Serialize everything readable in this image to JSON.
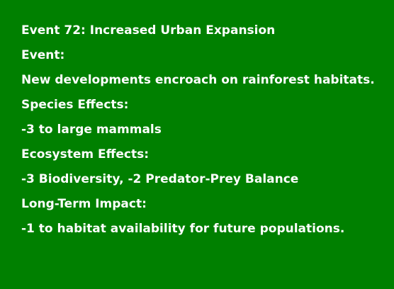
{
  "event": {
    "title": "Event 72: Increased Urban Expansion",
    "event_label": "Event:",
    "description": "New developments encroach on rainforest habitats.",
    "species_label": "Species Effects:",
    "species_effects": "-3 to large mammals",
    "ecosystem_label": "Ecosystem Effects:",
    "ecosystem_effects": "-3 Biodiversity, -2 Predator-Prey Balance",
    "long_term_label": "Long-Term Impact:",
    "long_term_impact": "-1 to habitat availability for future populations."
  },
  "colors": {
    "background": "#008000",
    "text": "#ffffff"
  }
}
